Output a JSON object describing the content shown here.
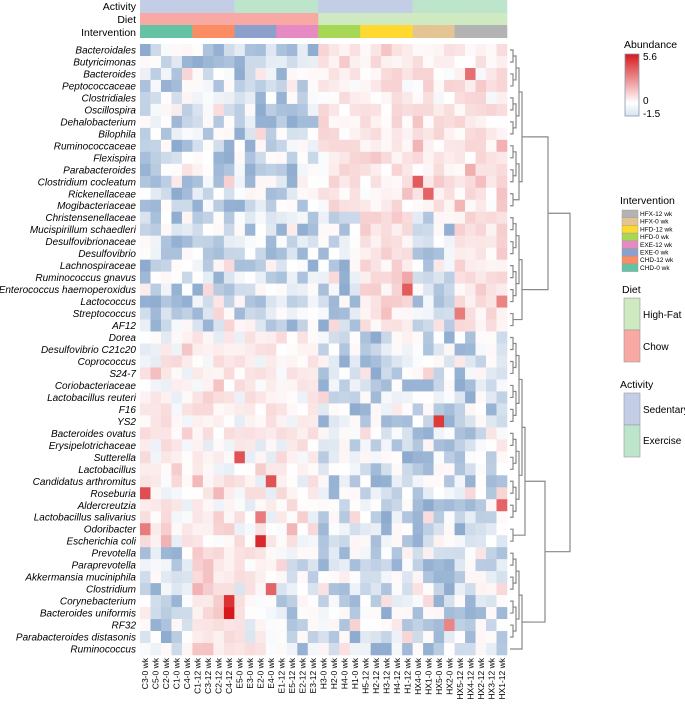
{
  "chart_data": {
    "type": "heatmap",
    "title": "",
    "annotations": {
      "tracks": [
        "Activity",
        "Diet",
        "Intervention"
      ],
      "activity_colors": {
        "Sedentary": "#c3cde6",
        "Exercise": "#bde5cc"
      },
      "diet_colors": {
        "High-Fat": "#cfe9c0",
        "Chow": "#f8a9a4"
      },
      "intervention_colors": {
        "CHD-0 wk": "#66c2a5",
        "CHD-12 wk": "#fc8d62",
        "EXE-0 wk": "#8da0cb",
        "EXE-12 wk": "#e78ac3",
        "HFD-0 wk": "#a6d854",
        "HFD-12 wk": "#ffd92f",
        "HFX-0 wk": "#e5c494",
        "HFX-12 wk": "#b3b3b3"
      }
    },
    "columns": [
      "C3-0 wk",
      "C5-0 wk",
      "C2-0 wk",
      "C1-0 wk",
      "C4-0 wk",
      "C1-12 wk",
      "C3-12 wk",
      "C2-12 wk",
      "C4-12 wk",
      "E5-0 wk",
      "E3-0 wk",
      "E2-0 wk",
      "E4-0 wk",
      "E1-12 wk",
      "E5-12 wk",
      "E2-12 wk",
      "E3-12 wk",
      "H3-0 wk",
      "H2-0 wk",
      "H4-0 wk",
      "H1-0 wk",
      "H5-12 wk",
      "H2-12 wk",
      "H3-12 wk",
      "H4-12 wk",
      "H1-12 wk",
      "HX4-0 wk",
      "HX1-0 wk",
      "HX5-0 wk",
      "HX2-0 wk",
      "HX5-12 wk",
      "HX4-12 wk",
      "HX2-12 wk",
      "HX3-12 wk",
      "HX1-12 wk"
    ],
    "rows": [
      "Bacteroidales",
      "Butyricimonas",
      "Bacteroides",
      "Peptococcaceae",
      "Clostridiales",
      "Oscillospira",
      "Dehalobacterium",
      "Bilophila",
      "Ruminococcaceae",
      "Flexispira",
      "Parabacteroides",
      "Clostridium cocleatum",
      "Rickenellaceae",
      "Mogibacteriaceae",
      "Christensenellaceae",
      "Mucispirillum schaedleri",
      "Desulfovibrionaceae",
      "Desulfovibrio",
      "Lachnospiraceae",
      "Ruminococcus gnavus",
      "Enterococcus haemoperoxidus",
      "Lactococcus",
      "Streptococcus",
      "AF12",
      "Dorea",
      "Desulfovibrio C21c20",
      "Coprococcus",
      "S24-7",
      "Coriobacteriaceae",
      "Lactobacillus reuteri",
      "F16",
      "YS2",
      "Bacteroides ovatus",
      "Erysipelotrichaceae",
      "Sutterella",
      "Lactobacillus",
      "Candidatus arthromitus",
      "Roseburia",
      "Aldercreutzia",
      "Lactobacillus salivarius",
      "Odoribacter",
      "Escherichia coli",
      "Prevotella",
      "Paraprevotella",
      "Akkermansia muciniphila",
      "Clostridium",
      "Corynebacterium",
      "Bacteroides uniformis",
      "RF32",
      "Parabacteroides distasonis",
      "Ruminococcus"
    ],
    "color_scale": {
      "min": -1.5,
      "mid": 0,
      "max": 5.6,
      "low_color": "#4a7ab3",
      "mid_color": "#ffffff",
      "high_color": "#d7191c"
    },
    "legend": {
      "abundance_title": "Abundance",
      "abundance_ticks": [
        "5.6",
        "0",
        "-1.5"
      ],
      "intervention_title": "Intervention",
      "intervention_items": [
        "HFX-12 wk",
        "HFX-0 wk",
        "HFD-12 wk",
        "HFD-0 wk",
        "EXE-12 wk",
        "EXE-0 wk",
        "CHD-12 wk",
        "CHD-0 wk"
      ],
      "diet_title": "Diet",
      "diet_items": [
        "High-Fat",
        "Chow"
      ],
      "activity_title": "Activity",
      "activity_items": [
        "Sedentary",
        "Exercise"
      ]
    },
    "notable_cells": [
      {
        "row": "Bacteroides uniformis",
        "col": "C4-12 wk",
        "value": 5.6
      },
      {
        "row": "Corynebacterium",
        "col": "C4-12 wk",
        "value": 5.0
      },
      {
        "row": "Escherichia coli",
        "col": "E2-0 wk",
        "value": 5.2
      },
      {
        "row": "YS2",
        "col": "HX5-0 wk",
        "value": 4.8
      },
      {
        "row": "Sutterella",
        "col": "E5-0 wk",
        "value": 4.2
      },
      {
        "row": "Roseburia",
        "col": "C3-0 wk",
        "value": 4.3
      },
      {
        "row": "Candidatus arthromitus",
        "col": "E4-0 wk",
        "value": 4.2
      },
      {
        "row": "Clostridium cocleatum",
        "col": "HX4-0 wk",
        "value": 4.0
      },
      {
        "row": "Rickenellaceae",
        "col": "HX1-0 wk",
        "value": 3.8
      },
      {
        "row": "Enterococcus haemoperoxidus",
        "col": "H1-12 wk",
        "value": 4.0
      },
      {
        "row": "Clostridium",
        "col": "E4-0 wk",
        "value": 3.8
      },
      {
        "row": "Bacteroides",
        "col": "HX4-12 wk",
        "value": 3.5
      },
      {
        "row": "Aldercreutzia",
        "col": "HX1-12 wk",
        "value": 3.8
      },
      {
        "row": "Streptococcus",
        "col": "HX5-12 wk",
        "value": 3.2
      },
      {
        "row": "Odoribacter",
        "col": "C3-0 wk",
        "value": 3.2
      },
      {
        "row": "Lactobacillus salivarius",
        "col": "E2-0 wk",
        "value": 3.2
      },
      {
        "row": "RF32",
        "col": "HX2-0 wk",
        "value": 3.0
      },
      {
        "row": "Lactococcus",
        "col": "HX1-12 wk",
        "value": 3.0
      }
    ]
  }
}
